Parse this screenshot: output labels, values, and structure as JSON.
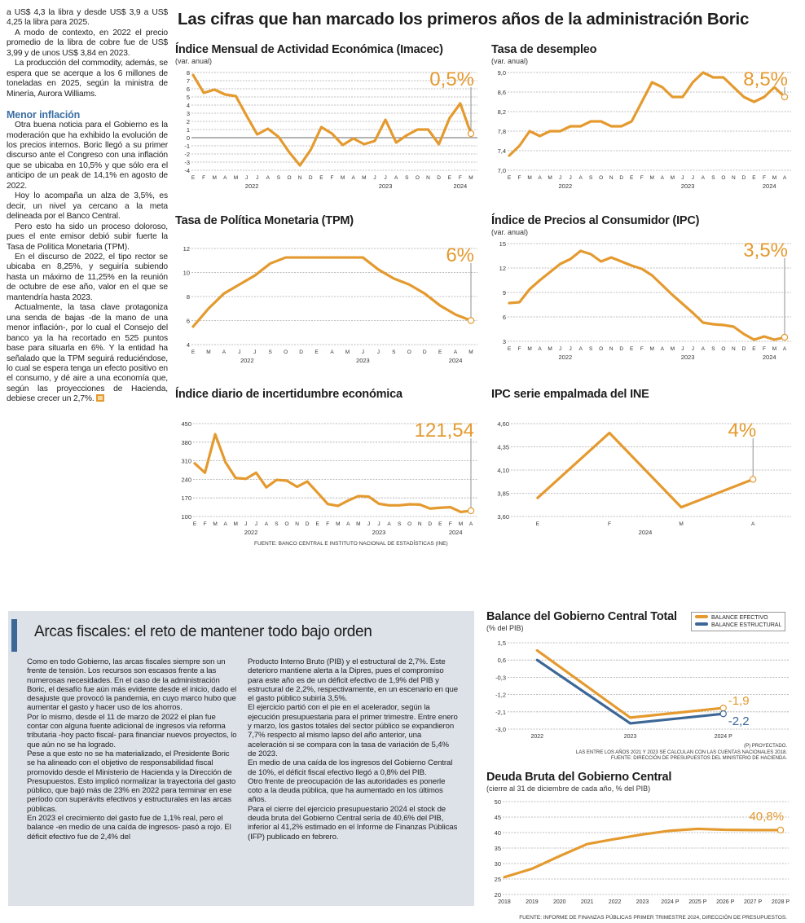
{
  "left_column": {
    "paragraphs_top": [
      "a US$ 4,3 la libra y desde US$ 3,9 a US$ 4,25 la libra para 2025.",
      "A modo de contexto, en 2022 el precio promedio de la libra de cobre fue de US$ 3,99 y de unos US$ 3,84 en 2023.",
      "La producción del commodity, además, se espera que se acerque a los 6 millones de toneladas en 2025, según la ministra de Minería, Aurora Williams."
    ],
    "subheading": "Menor inflación",
    "paragraphs_bottom": [
      "Otra buena noticia para el Gobierno es la moderación que ha exhibido la evolución de los precios internos. Boric llegó a su primer discurso ante el Congreso con una inflación que se ubicaba en 10,5% y que sólo era el anticipo de un peak de 14,1% en agosto de 2022.",
      "Hoy lo acompaña un alza de 3,5%, es decir, un nivel ya cercano a la meta delineada por el Banco Central.",
      "Pero esto ha sido un proceso doloroso, pues el ente emisor debió subir fuerte la Tasa de Política Monetaria (TPM).",
      "En el discurso de 2022, el tipo rector se ubicaba en 8,25%, y seguiría subiendo hasta un máximo de 11,25% en la reunión de octubre de ese año, valor en el que se mantendría hasta 2023.",
      "Actualmente, la tasa clave protagoniza una senda de bajas -de la mano de una menor inflación-, por lo cual el Consejo del banco ya la ha recortado en 525 puntos base para situarla en 6%. Y la entidad ha señalado que la TPM seguirá reduciéndose, lo cual se espera tenga un efecto positivo en el consumo, y dé aire a una economía que, según las proyecciones de Hacienda, debiese crecer un 2,7%."
    ]
  },
  "main_title": "Las cifras que han marcado los primeros años de la administración Boric",
  "source_top": "Fuente: Banco Central e Instituto Nacional de Estadísticas (INE)",
  "fiscal": {
    "title": "Arcas fiscales: el reto de mantener todo bajo orden",
    "col1": "Como en todo Gobierno, las arcas fiscales siempre son un frente de tensión. Los recursos son escasos frente a las numerosas necesidades. En el caso de la administración Boric, el desafío fue aún más evidente desde el inicio, dado el desajuste que provocó la pandemia, en cuyo marco hubo que aumentar el gasto y hacer uso de los ahorros.\nPor lo mismo, desde el 11 de marzo de 2022 el plan fue contar con alguna fuente adicional de ingresos vía reforma tributaria -hoy pacto fiscal- para financiar nuevos proyectos, lo que aún no se ha logrado.\nPese a que esto no se ha materializado, el Presidente Boric se ha alineado con el objetivo de responsabilidad fiscal promovido desde el Ministerio de Hacienda y la Dirección de Presupuestos. Esto implicó normalizar la trayectoria del gasto público, que bajó más de 23% en 2022 para terminar en ese período con superávits efectivos y estructurales en las arcas públicas.\nEn 2023 el crecimiento del gasto fue de 1,1% real, pero el balance -en medio de una caída de ingresos- pasó a rojo. El déficit efectivo fue de 2,4% del",
    "col2": "Producto Interno Bruto (PIB) y el estructural de 2,7%. Este deterioro mantiene alerta a la Dipres, pues el compromiso para este año es de un déficit efectivo de 1,9% del PIB y estructural de 2,2%, respectivamente, en un escenario en que el gasto público subiría 3,5%.\nEl ejercicio partió con el pie en el acelerador, según la ejecución presupuestaria para el primer trimestre. Entre enero y marzo, los gastos totales del sector público se expandieron 7,7% respecto al mismo lapso del año anterior, una aceleración si se compara con la tasa de variación de 5,4% de 2023.\nEn medio de una caída de los ingresos del Gobierno Central de 10%, el déficit fiscal efectivo llegó a 0,8% del PIB.\nOtro frente de preocupación de las autoridades es ponerle coto a la deuda pública, que ha aumentado en los últimos años.\nPara el cierre del ejercicio presupuestario 2024 el stock de deuda bruta del Gobierno Central sería de 40,6% del PIB, inferior al 41,2% estimado en el Informe de Finanzas Públicas (IFP) publicado en febrero."
  },
  "balance_notes": [
    "(P) Proyectado.",
    "Las entre los años 2021 y 2023 se calculan con las cuentas nacionales 2018.",
    "Fuente: Dirección de Presupuestos del Ministerio de Hacienda."
  ],
  "source_deuda": "Fuente: Informe de Finanzas Públicas primer trimestre 2024, Dirección de Presupuestos.",
  "colors": {
    "accent": "#e49a2f",
    "structural": "#3c6796",
    "box_bg": "#dde1e8",
    "subheading": "#3b6fa3"
  },
  "chart_data": [
    {
      "id": "imacec",
      "type": "line",
      "title": "Índice Mensual de Actividad Económica (Imacec)",
      "subtitle": "(var. anual)",
      "x": [
        "E",
        "F",
        "M",
        "A",
        "M",
        "J",
        "J",
        "A",
        "S",
        "O",
        "N",
        "D",
        "E",
        "F",
        "M",
        "A",
        "M",
        "J",
        "J",
        "A",
        "S",
        "O",
        "N",
        "D",
        "E",
        "F",
        "M"
      ],
      "years": [
        "2022",
        "2023",
        "2024"
      ],
      "ylim": [
        -4,
        8
      ],
      "yticks": [
        "8",
        "7",
        "6",
        "5",
        "4",
        "3",
        "2",
        "1",
        "0",
        "-1",
        "-2",
        "-3",
        "-4"
      ],
      "series": [
        {
          "values": [
            7.7,
            5.5,
            5.9,
            5.3,
            5.1,
            2.7,
            0.4,
            1.1,
            0.1,
            -1.8,
            -3.4,
            -1.5,
            1.3,
            0.5,
            -0.9,
            -0.1,
            -0.8,
            -0.4,
            2.2,
            -0.6,
            0.3,
            1.0,
            1.0,
            -0.8,
            2.4,
            4.2,
            0.5
          ]
        }
      ],
      "annotation": "0,5%",
      "zero_line": true
    },
    {
      "id": "desempleo",
      "type": "line",
      "title": "Tasa de desempleo",
      "subtitle": "(var. anual)",
      "x": [
        "E",
        "F",
        "M",
        "A",
        "M",
        "J",
        "J",
        "A",
        "S",
        "O",
        "N",
        "D",
        "E",
        "F",
        "M",
        "A",
        "M",
        "J",
        "J",
        "A",
        "S",
        "O",
        "N",
        "D",
        "E",
        "F",
        "M",
        "A"
      ],
      "years": [
        "2022",
        "2023",
        "2024"
      ],
      "ylim": [
        7.0,
        9.0
      ],
      "yticks": [
        "9,0",
        "8,6",
        "8,2",
        "7,8",
        "7,4",
        "7,0"
      ],
      "series": [
        {
          "values": [
            7.3,
            7.5,
            7.8,
            7.7,
            7.8,
            7.8,
            7.9,
            7.9,
            8.0,
            8.0,
            7.9,
            7.9,
            8.0,
            8.4,
            8.8,
            8.7,
            8.5,
            8.5,
            8.8,
            9.0,
            8.9,
            8.9,
            8.7,
            8.5,
            8.4,
            8.5,
            8.7,
            8.5
          ]
        }
      ],
      "annotation": "8,5%"
    },
    {
      "id": "tpm",
      "type": "line",
      "title": "Tasa de Política Monetaria (TPM)",
      "subtitle": "",
      "x": [
        "E",
        "M",
        "A",
        "J",
        "J",
        "S",
        "O",
        "D",
        "E",
        "A",
        "M",
        "J",
        "J",
        "S",
        "O",
        "D",
        "E",
        "A",
        "M"
      ],
      "years": [
        "2022",
        "2023",
        "2024"
      ],
      "ylim": [
        4,
        12
      ],
      "yticks": [
        "12",
        "10",
        "8",
        "6",
        "4"
      ],
      "series": [
        {
          "values": [
            5.5,
            7.0,
            8.25,
            9.0,
            9.75,
            10.75,
            11.25,
            11.25,
            11.25,
            11.25,
            11.25,
            11.25,
            10.25,
            9.5,
            9.0,
            8.25,
            7.25,
            6.5,
            6.0
          ]
        }
      ],
      "annotation": "6%"
    },
    {
      "id": "ipc",
      "type": "line",
      "title": "Índice de Precios al Consumidor (IPC)",
      "subtitle": "(var. anual)",
      "x": [
        "E",
        "F",
        "M",
        "A",
        "M",
        "J",
        "J",
        "A",
        "S",
        "O",
        "N",
        "D",
        "E",
        "F",
        "M",
        "A",
        "M",
        "J",
        "J",
        "A",
        "S",
        "O",
        "N",
        "D",
        "E",
        "F",
        "M",
        "A"
      ],
      "years": [
        "2022",
        "2023",
        "2024"
      ],
      "ylim": [
        3,
        15
      ],
      "yticks": [
        "15",
        "12",
        "9",
        "6",
        "3"
      ],
      "series": [
        {
          "values": [
            7.7,
            7.8,
            9.4,
            10.5,
            11.5,
            12.5,
            13.1,
            14.1,
            13.7,
            12.8,
            13.3,
            12.8,
            12.3,
            11.9,
            11.1,
            9.9,
            8.7,
            7.6,
            6.5,
            5.3,
            5.1,
            5.0,
            4.8,
            3.9,
            3.2,
            3.6,
            3.2,
            3.5
          ]
        }
      ],
      "annotation": "3,5%"
    },
    {
      "id": "incertidumbre",
      "type": "line",
      "title": "Índice diario de incertidumbre económica",
      "subtitle": "",
      "x": [
        "E",
        "F",
        "M",
        "A",
        "M",
        "J",
        "J",
        "A",
        "S",
        "O",
        "N",
        "D",
        "E",
        "F",
        "M",
        "A",
        "M",
        "J",
        "J",
        "A",
        "S",
        "O",
        "N",
        "D",
        "E",
        "F",
        "M",
        "A"
      ],
      "years": [
        "2022",
        "2023",
        "2024"
      ],
      "ylim": [
        100,
        450
      ],
      "yticks": [
        "450",
        "380",
        "310",
        "240",
        "170",
        "100"
      ],
      "series": [
        {
          "values": [
            300,
            265,
            410,
            305,
            245,
            242,
            265,
            210,
            238,
            235,
            212,
            232,
            190,
            147,
            140,
            160,
            177,
            175,
            148,
            142,
            142,
            146,
            145,
            130,
            133,
            135,
            117,
            121.54
          ]
        }
      ],
      "annotation": "121,54"
    },
    {
      "id": "ipc_empalmada",
      "type": "line",
      "title": "IPC serie empalmada del INE",
      "subtitle": "",
      "x": [
        "E",
        "F",
        "M",
        "A"
      ],
      "years": [
        "2024"
      ],
      "ylim": [
        3.6,
        4.6
      ],
      "yticks": [
        "4,60",
        "4,35",
        "4,10",
        "3,85",
        "3,60"
      ],
      "series": [
        {
          "values": [
            3.8,
            4.5,
            3.7,
            4.0
          ]
        }
      ],
      "annotation": "4%"
    },
    {
      "id": "balance",
      "type": "line",
      "title": "Balance del Gobierno Central Total",
      "subtitle": "(% del PIB)",
      "x": [
        "2022",
        "2023",
        "2024 P"
      ],
      "ylim": [
        -3.0,
        1.5
      ],
      "yticks": [
        "1,5",
        "0,6",
        "-0,3",
        "-1,2",
        "-2,1",
        "-3,0"
      ],
      "series": [
        {
          "name": "BALANCE EFECTIVO",
          "color": "#e49a2f",
          "values": [
            1.1,
            -2.4,
            -1.9
          ],
          "label": "-1,9"
        },
        {
          "name": "BALANCE ESTRUCTURAL",
          "color": "#3c6796",
          "values": [
            0.6,
            -2.7,
            -2.2
          ],
          "label": "-2,2"
        }
      ],
      "legend": "top-right"
    },
    {
      "id": "deuda",
      "type": "line",
      "title": "Deuda Bruta del Gobierno Central",
      "subtitle": "(cierre al 31 de diciembre de cada año, % del PIB)",
      "x": [
        "2018",
        "2019",
        "2020",
        "2021",
        "2022",
        "2023",
        "2024 P",
        "2025 P",
        "2026 P",
        "2027 P",
        "2028 P"
      ],
      "ylim": [
        20,
        50
      ],
      "yticks": [
        "50",
        "45",
        "40",
        "35",
        "30",
        "25",
        "20"
      ],
      "series": [
        {
          "values": [
            25.6,
            28.3,
            32.4,
            36.3,
            37.9,
            39.4,
            40.6,
            41.2,
            40.9,
            40.8,
            40.8
          ]
        }
      ],
      "annotation": "40,8%"
    }
  ]
}
